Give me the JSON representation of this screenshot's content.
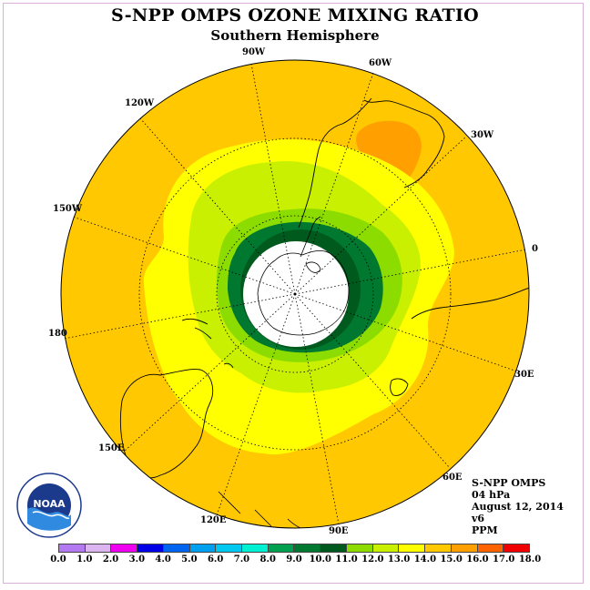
{
  "title": "S-NPP OMPS OZONE MIXING RATIO",
  "subtitle": "Southern Hemisphere",
  "longitude_labels": [
    "90W",
    "60W",
    "30W",
    "0",
    "30E",
    "60E",
    "90E",
    "120E",
    "150E",
    "180",
    "150W",
    "120W"
  ],
  "info": {
    "instrument": "S-NPP OMPS",
    "level": "04 hPa",
    "date": "August 12, 2014",
    "version": "v6",
    "units": "PPM"
  },
  "logo": {
    "text": "NOAA",
    "icon": "noaa-logo-icon"
  },
  "colorbar": {
    "ticks": [
      "0.0",
      "1.0",
      "2.0",
      "3.0",
      "4.0",
      "5.0",
      "6.0",
      "7.0",
      "8.0",
      "9.0",
      "10.0",
      "11.0",
      "12.0",
      "13.0",
      "14.0",
      "15.0",
      "16.0",
      "17.0",
      "18.0"
    ],
    "colors": [
      "#b478f0",
      "#dcb4f0",
      "#f000f0",
      "#0000e6",
      "#0064f0",
      "#00a0f0",
      "#00c8f0",
      "#00f0d2",
      "#00a050",
      "#007830",
      "#005a1e",
      "#8cdc00",
      "#c8f000",
      "#ffff00",
      "#ffc800",
      "#ffa000",
      "#ff6400",
      "#f00000",
      "#8c5a3c"
    ]
  },
  "map_colors": {
    "background": "#ffc800",
    "high_patch": "#ffa000",
    "ring_yellow": "#ffff00",
    "ring_lightgreen": "#c8f000",
    "ring_green": "#8cdc00",
    "ring_darkgreen": "#007830",
    "ring_darkest": "#005a1e",
    "pole_mask": "#ffffff"
  }
}
